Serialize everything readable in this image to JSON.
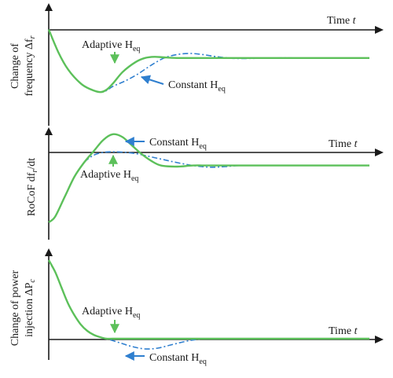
{
  "chart_data": [
    {
      "type": "line",
      "ylabel_line1": "Change of",
      "ylabel_line2": "frequency Δf",
      "ylabel_sub": "r",
      "xlabel": "Time",
      "xlabel_var": "t",
      "series": [
        {
          "name_main": "Adaptive H",
          "name_sub": "eq",
          "color": "#5cc05a",
          "x": [
            0,
            0.03,
            0.06,
            0.1,
            0.13,
            0.16,
            0.18,
            0.2,
            0.23,
            0.27,
            0.3,
            0.33,
            0.36,
            0.4,
            0.5,
            0.6,
            0.8,
            1.0
          ],
          "y": [
            1.0,
            0.2,
            -0.4,
            -0.9,
            -1.1,
            -1.2,
            -1.12,
            -0.9,
            -0.5,
            -0.15,
            0.0,
            0.04,
            0.02,
            0.0,
            0.0,
            0.0,
            0.0,
            0.0
          ]
        },
        {
          "name_main": "Constant H",
          "name_sub": "eq",
          "color": "#2f7fcf",
          "x": [
            0,
            0.03,
            0.06,
            0.1,
            0.13,
            0.16,
            0.18,
            0.2,
            0.24,
            0.28,
            0.32,
            0.36,
            0.4,
            0.44,
            0.48,
            0.52,
            0.56,
            0.6,
            0.7,
            0.8,
            1.0
          ],
          "y": [
            1.0,
            0.2,
            -0.4,
            -0.9,
            -1.1,
            -1.2,
            -1.15,
            -1.0,
            -0.8,
            -0.55,
            -0.25,
            0.0,
            0.12,
            0.16,
            0.12,
            0.05,
            0.0,
            -0.02,
            0.0,
            0.0,
            0.0
          ]
        }
      ],
      "ylim": [
        -1.5,
        1.1
      ],
      "annotations": {
        "adaptive_main": "Adaptive H",
        "adaptive_sub": "eq",
        "constant_main": "Constant H",
        "constant_sub": "eq"
      }
    },
    {
      "type": "line",
      "ylabel_main": "RoCoF df",
      "ylabel_sub": "r",
      "ylabel_tail": "/dt",
      "xlabel": "Time",
      "xlabel_var": "t",
      "series": [
        {
          "name_main": "Adaptive H",
          "name_sub": "eq",
          "color": "#5cc05a",
          "x": [
            0,
            0.02,
            0.05,
            0.08,
            0.11,
            0.14,
            0.17,
            0.2,
            0.23,
            0.26,
            0.29,
            0.32,
            0.35,
            0.4,
            0.45,
            0.5,
            0.6,
            0.8,
            1.0
          ],
          "y": [
            -1.0,
            -0.9,
            -0.55,
            -0.2,
            0.05,
            0.25,
            0.45,
            0.55,
            0.5,
            0.35,
            0.2,
            0.08,
            0.0,
            -0.02,
            0.0,
            0.0,
            0.0,
            0.0,
            0.0
          ]
        },
        {
          "name_main": "Constant H",
          "name_sub": "eq",
          "color": "#2f7fcf",
          "x": [
            0,
            0.02,
            0.05,
            0.08,
            0.11,
            0.14,
            0.17,
            0.2,
            0.24,
            0.28,
            0.32,
            0.36,
            0.4,
            0.45,
            0.5,
            0.55,
            0.6,
            0.7,
            0.8,
            1.0
          ],
          "y": [
            -1.0,
            -0.9,
            -0.55,
            -0.2,
            0.05,
            0.18,
            0.23,
            0.24,
            0.23,
            0.2,
            0.15,
            0.1,
            0.05,
            0.0,
            -0.03,
            -0.02,
            0.0,
            0.0,
            0.0,
            0.0
          ]
        }
      ],
      "ylim": [
        -1.1,
        0.7
      ],
      "annotations": {
        "adaptive_main": "Adaptive H",
        "adaptive_sub": "eq",
        "constant_main": "Constant H",
        "constant_sub": "eq"
      }
    },
    {
      "type": "line",
      "ylabel_line1": "Change of power",
      "ylabel_line2": "injection ΔP",
      "ylabel_sub": "c",
      "xlabel": "Time",
      "xlabel_var": "t",
      "series": [
        {
          "name_main": "Adaptive H",
          "name_sub": "eq",
          "color": "#5cc05a",
          "x": [
            0,
            0.02,
            0.04,
            0.06,
            0.08,
            0.1,
            0.12,
            0.14,
            0.16,
            0.18,
            0.2,
            0.3,
            0.5,
            1.0
          ],
          "y": [
            1.0,
            0.85,
            0.65,
            0.45,
            0.3,
            0.18,
            0.1,
            0.05,
            0.02,
            0.0,
            0.0,
            0.0,
            0.0,
            0.0
          ]
        },
        {
          "name_main": "Constant H",
          "name_sub": "eq",
          "color": "#2f7fcf",
          "x": [
            0,
            0.02,
            0.04,
            0.06,
            0.08,
            0.1,
            0.12,
            0.14,
            0.16,
            0.18,
            0.22,
            0.26,
            0.3,
            0.34,
            0.38,
            0.42,
            0.46,
            0.5,
            0.6,
            0.8,
            1.0
          ],
          "y": [
            1.0,
            0.85,
            0.65,
            0.45,
            0.3,
            0.18,
            0.1,
            0.05,
            0.02,
            0.0,
            -0.05,
            -0.1,
            -0.13,
            -0.12,
            -0.08,
            -0.04,
            -0.01,
            0.0,
            0.0,
            0.0,
            0.0
          ]
        }
      ],
      "ylim": [
        -0.35,
        1.05
      ],
      "annotations": {
        "adaptive_main": "Adaptive H",
        "adaptive_sub": "eq",
        "constant_main": "Constant H",
        "constant_sub": "eq"
      }
    }
  ]
}
